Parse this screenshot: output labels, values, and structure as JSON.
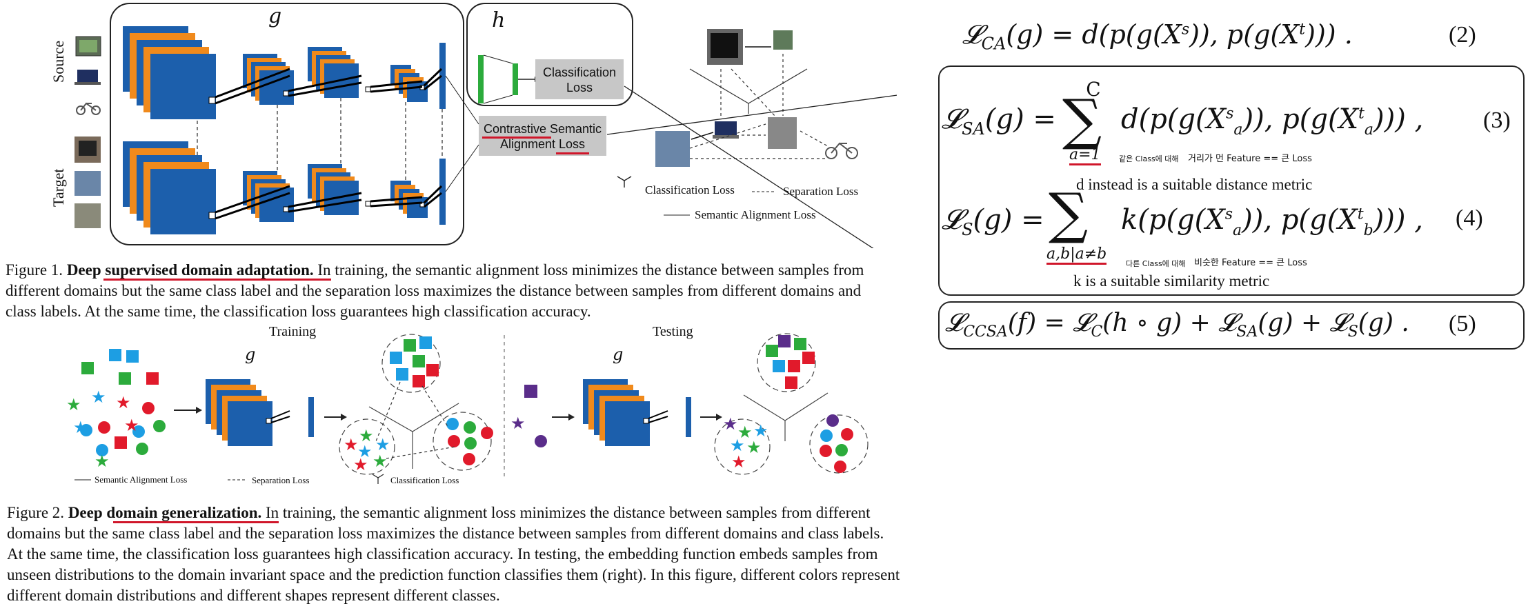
{
  "fig1": {
    "g_label": "g",
    "h_label": "h",
    "source_label": "Source",
    "target_label": "Target",
    "classification_box": "Classification Loss",
    "contrastive_box_line1": "Contrastive Semantic",
    "contrastive_box_line2": "Alignment Loss",
    "legend_classification": "Classification Loss",
    "legend_separation": "Separation Loss",
    "legend_semantic": "Semantic Alignment Loss",
    "caption_prefix": "Figure 1.",
    "caption_bold": "Deep supervised domain adaptation.",
    "caption_line1": "In training, the semantic alignment loss minimizes the distance between samples from",
    "caption_line2": "different domains but the same class label and the separation loss maximizes the distance between samples from different domains and",
    "caption_line3": "class labels. At the same time, the classification loss guarantees high classification accuracy."
  },
  "fig2": {
    "training_label": "Training",
    "testing_label": "Testing",
    "g_label": "g",
    "legend_semantic": "Semantic Alignment Loss",
    "legend_separation": "Separation Loss",
    "legend_classification": "Classification Loss",
    "caption_prefix": "Figure 2.",
    "caption_bold": "Deep domain generalization.",
    "caption_line1": "In training, the semantic alignment loss minimizes the distance between samples from different",
    "caption_line2": "domains but the same class label and the separation loss maximizes the distance between samples from different domains and class labels.",
    "caption_line3": "At the same time, the classification loss guarantees high classification accuracy. In testing, the embedding function embeds samples from",
    "caption_line4": "unseen distributions to the domain invariant space and the prediction function classifies them (right). In this figure, different colors represent",
    "caption_line5": "different domain distributions and different shapes represent different classes."
  },
  "equations": {
    "eq2_num": "(2)",
    "eq3_num": "(3)",
    "eq4_num": "(4)",
    "eq5_num": "(5)",
    "eq3_sum_top": "C",
    "eq3_sum_bottom": "a=1",
    "eq3_note_small": "같은 Class에 대해",
    "eq3_note": "거리가 먼 Feature == 큰 Loss",
    "eq3_metric": "d instead is a suitable distance metric",
    "eq4_sum_bottom": "a,b|a≠b",
    "eq4_note_small": "다른 Class에 대해",
    "eq4_note": "비슷한 Feature == 큰 Loss",
    "eq4_metric": "k is a suitable similarity metric"
  },
  "colors": {
    "blue": "#1c5fac",
    "orange": "#f08a1c",
    "green": "#2cab3c",
    "red": "#e11a2b",
    "sky": "#1d9ee3",
    "purple": "#5a2d8a",
    "gray_box": "#c7c7c7",
    "underline_red": "#d0162a"
  }
}
